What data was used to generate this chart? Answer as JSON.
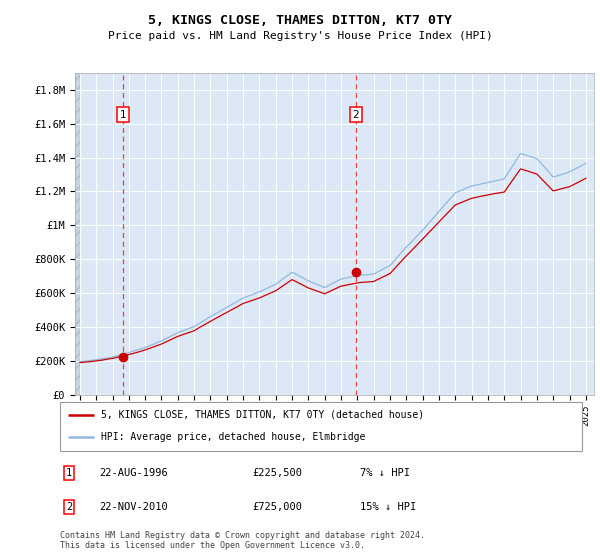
{
  "title": "5, KINGS CLOSE, THAMES DITTON, KT7 0TY",
  "subtitle": "Price paid vs. HM Land Registry's House Price Index (HPI)",
  "ylim": [
    0,
    1900000
  ],
  "yticks": [
    0,
    200000,
    400000,
    600000,
    800000,
    1000000,
    1200000,
    1400000,
    1600000,
    1800000
  ],
  "ytick_labels": [
    "£0",
    "£200K",
    "£400K",
    "£600K",
    "£800K",
    "£1M",
    "£1.2M",
    "£1.4M",
    "£1.6M",
    "£1.8M"
  ],
  "xlim_start": 1993.7,
  "xlim_end": 2025.5,
  "hpi_color": "#90b8e0",
  "price_color": "#cc0000",
  "bg_color": "#dce8f5",
  "grid_color": "#ffffff",
  "sale1_x": 1996.63,
  "sale1_y": 225500,
  "sale2_x": 2010.9,
  "sale2_y": 725000,
  "legend_label1": "5, KINGS CLOSE, THAMES DITTON, KT7 0TY (detached house)",
  "legend_label2": "HPI: Average price, detached house, Elmbridge",
  "annotation1_label": "1",
  "annotation2_label": "2",
  "table_rows": [
    [
      "1",
      "22-AUG-1996",
      "£225,500",
      "7% ↓ HPI"
    ],
    [
      "2",
      "22-NOV-2010",
      "£725,000",
      "15% ↓ HPI"
    ]
  ],
  "footer": "Contains HM Land Registry data © Crown copyright and database right 2024.\nThis data is licensed under the Open Government Licence v3.0."
}
